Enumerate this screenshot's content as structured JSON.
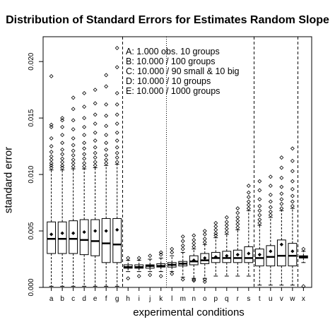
{
  "chart_data": {
    "type": "box",
    "title": "Distribution of Standard Errors for Estimates Random Slope",
    "xlabel": "experimental conditions",
    "ylabel": "standard error",
    "ylim": [
      0,
      0.0222
    ],
    "yticks": [
      "0.000",
      "0.005",
      "0.010",
      "0.015",
      "0.020"
    ],
    "ytick_values": [
      0,
      0.005,
      0.01,
      0.015,
      0.02
    ],
    "categories": [
      "a",
      "b",
      "c",
      "d",
      "e",
      "f",
      "g",
      "h",
      "i",
      "j",
      "k",
      "l",
      "m",
      "n",
      "o",
      "p",
      "q",
      "r",
      "s",
      "t",
      "u",
      "v",
      "w",
      "x"
    ],
    "legend": [
      "A: 1.000 obs. 10 groups",
      "B: 10.000 / 100 groups",
      "C: 10.000 / 90 small & 10 big",
      "D: 10.000 / 10 groups",
      "E: 10.000 / 1000 groups"
    ],
    "group_separators": [
      {
        "after": "g",
        "style": "dashed"
      },
      {
        "after": "k",
        "style": "dotted"
      },
      {
        "after": "s",
        "style": "dashed"
      },
      {
        "after": "w",
        "style": "dashed"
      }
    ],
    "boxes": [
      {
        "label": "a",
        "whisker_low": 0.0001,
        "q1": 0.003,
        "median": 0.0043,
        "q3": 0.0058,
        "whisker_high": 0.0104,
        "mean": 0.0047,
        "outliers": [
          0.0106,
          0.0108,
          0.011,
          0.0113,
          0.0116,
          0.012,
          0.0125,
          0.0132,
          0.0142,
          0.0144,
          0.0187
        ]
      },
      {
        "label": "b",
        "whisker_low": 0.0001,
        "q1": 0.003,
        "median": 0.0043,
        "q3": 0.0058,
        "whisker_high": 0.0104,
        "mean": 0.0048,
        "outliers": [
          0.0106,
          0.0108,
          0.0111,
          0.0114,
          0.0118,
          0.0122,
          0.0128,
          0.0135,
          0.0142,
          0.0148,
          0.015
        ]
      },
      {
        "label": "c",
        "whisker_low": 0.0001,
        "q1": 0.003,
        "median": 0.0043,
        "q3": 0.0059,
        "whisker_high": 0.0105,
        "mean": 0.0048,
        "outliers": [
          0.0107,
          0.011,
          0.0113,
          0.0117,
          0.0121,
          0.0126,
          0.0132,
          0.014,
          0.0148,
          0.0158,
          0.0168
        ]
      },
      {
        "label": "d",
        "whisker_low": 0.0001,
        "q1": 0.0029,
        "median": 0.0042,
        "q3": 0.006,
        "whisker_high": 0.0105,
        "mean": 0.0049,
        "outliers": [
          0.0107,
          0.011,
          0.0114,
          0.0118,
          0.0123,
          0.0128,
          0.0135,
          0.0142,
          0.015,
          0.016,
          0.0172
        ]
      },
      {
        "label": "e",
        "whisker_low": 0.0001,
        "q1": 0.0028,
        "median": 0.0041,
        "q3": 0.006,
        "whisker_high": 0.0106,
        "mean": 0.005,
        "outliers": [
          0.0108,
          0.0111,
          0.0115,
          0.0119,
          0.0124,
          0.013,
          0.0137,
          0.0145,
          0.0153,
          0.0163,
          0.0175
        ]
      },
      {
        "label": "f",
        "whisker_low": 0.0001,
        "q1": 0.0022,
        "median": 0.0039,
        "q3": 0.0061,
        "whisker_high": 0.0108,
        "mean": 0.005,
        "outliers": [
          0.011,
          0.0113,
          0.0117,
          0.0122,
          0.0128,
          0.0135,
          0.0143,
          0.0152,
          0.0162,
          0.0178,
          0.0188
        ]
      },
      {
        "label": "g",
        "whisker_low": 0.0001,
        "q1": 0.0022,
        "median": 0.0038,
        "q3": 0.0061,
        "whisker_high": 0.0109,
        "mean": 0.0051,
        "outliers": [
          0.0111,
          0.0115,
          0.0119,
          0.0124,
          0.013,
          0.0137,
          0.0145,
          0.0153,
          0.0162,
          0.0172,
          0.0195,
          0.0212
        ]
      },
      {
        "label": "h",
        "whisker_low": 0.0014,
        "q1": 0.0017,
        "median": 0.0018,
        "q3": 0.002,
        "whisker_high": 0.0024,
        "mean": 0.0018,
        "outliers": [
          0.0026,
          0.0008
        ]
      },
      {
        "label": "i",
        "whisker_low": 0.0014,
        "q1": 0.0017,
        "median": 0.0018,
        "q3": 0.002,
        "whisker_high": 0.0024,
        "mean": 0.0018,
        "outliers": [
          0.0026,
          0.001
        ]
      },
      {
        "label": "j",
        "whisker_low": 0.0014,
        "q1": 0.0017,
        "median": 0.0019,
        "q3": 0.002,
        "whisker_high": 0.0025,
        "mean": 0.0019,
        "outliers": [
          0.0028,
          0.0011
        ]
      },
      {
        "label": "k",
        "whisker_low": 0.0014,
        "q1": 0.0018,
        "median": 0.0019,
        "q3": 0.0021,
        "whisker_high": 0.0026,
        "mean": 0.0019,
        "outliers": [
          0.0029,
          0.0031,
          0.001
        ]
      },
      {
        "label": "l",
        "whisker_low": 0.0014,
        "q1": 0.0018,
        "median": 0.002,
        "q3": 0.0022,
        "whisker_high": 0.0028,
        "mean": 0.002,
        "outliers": [
          0.0031,
          0.0034,
          0.0012
        ]
      },
      {
        "label": "m",
        "whisker_low": 0.0009,
        "q1": 0.0019,
        "median": 0.0021,
        "q3": 0.0023,
        "whisker_high": 0.0031,
        "mean": 0.0021,
        "outliers": [
          0.0034,
          0.0037,
          0.0041,
          0.0045,
          0.0007
        ]
      },
      {
        "label": "n",
        "whisker_low": 0.0008,
        "q1": 0.002,
        "median": 0.0023,
        "q3": 0.0028,
        "whisker_high": 0.0034,
        "mean": 0.0024,
        "outliers": [
          0.0036,
          0.0039,
          0.0042,
          0.0046,
          0.0007,
          0.0006
        ]
      },
      {
        "label": "o",
        "whisker_low": 0.0008,
        "q1": 0.0021,
        "median": 0.0024,
        "q3": 0.003,
        "whisker_high": 0.0038,
        "mean": 0.0026,
        "outliers": [
          0.004,
          0.0043,
          0.0047,
          0.005,
          0.0007,
          0.0005
        ]
      },
      {
        "label": "p",
        "whisker_low": 0.001,
        "q1": 0.0022,
        "median": 0.0026,
        "q3": 0.0031,
        "whisker_high": 0.0044,
        "mean": 0.0027,
        "outliers": [
          0.0046,
          0.0048,
          0.0051,
          0.0054,
          0.0057
        ]
      },
      {
        "label": "q",
        "whisker_low": 0.001,
        "q1": 0.0022,
        "median": 0.0026,
        "q3": 0.0032,
        "whisker_high": 0.0047,
        "mean": 0.0028,
        "outliers": [
          0.0049,
          0.0052,
          0.0055,
          0.0058,
          0.0062
        ]
      },
      {
        "label": "r",
        "whisker_low": 0.001,
        "q1": 0.0022,
        "median": 0.0026,
        "q3": 0.0033,
        "whisker_high": 0.0051,
        "mean": 0.0029,
        "outliers": [
          0.0053,
          0.0056,
          0.0059,
          0.0062,
          0.0066,
          0.007
        ]
      },
      {
        "label": "s",
        "whisker_low": 0.001,
        "q1": 0.0022,
        "median": 0.0026,
        "q3": 0.0036,
        "whisker_high": 0.0068,
        "mean": 0.003,
        "outliers": [
          0.007,
          0.0073,
          0.0076,
          0.008,
          0.0084,
          0.009
        ]
      },
      {
        "label": "t",
        "whisker_low": 0.0002,
        "q1": 0.0019,
        "median": 0.0026,
        "q3": 0.0034,
        "whisker_high": 0.0055,
        "mean": 0.0029,
        "outliers": [
          0.0057,
          0.006,
          0.0064,
          0.0068,
          0.0072,
          0.0078,
          0.0086,
          0.0094
        ]
      },
      {
        "label": "u",
        "whisker_low": 0.0002,
        "q1": 0.0019,
        "median": 0.0027,
        "q3": 0.0037,
        "whisker_high": 0.0062,
        "mean": 0.0032,
        "outliers": [
          0.0064,
          0.0067,
          0.0071,
          0.0076,
          0.0082,
          0.009,
          0.0098
        ]
      },
      {
        "label": "v",
        "whisker_low": 0.0002,
        "q1": 0.0019,
        "median": 0.0028,
        "q3": 0.0042,
        "whisker_high": 0.0068,
        "mean": 0.0038,
        "outliers": [
          0.007,
          0.0074,
          0.0078,
          0.0083,
          0.0089,
          0.0097,
          0.0106,
          0.0115
        ]
      },
      {
        "label": "w",
        "whisker_low": 0.0002,
        "q1": 0.0019,
        "median": 0.0028,
        "q3": 0.0039,
        "whisker_high": 0.007,
        "mean": 0.0032,
        "outliers": [
          0.0072,
          0.0076,
          0.0081,
          0.0087,
          0.0094,
          0.0103,
          0.0112,
          0.0123
        ]
      },
      {
        "label": "x",
        "whisker_low": 0.0022,
        "q1": 0.0026,
        "median": 0.0027,
        "q3": 0.0028,
        "whisker_high": 0.0032,
        "mean": 0.0027,
        "outliers": [
          0.0034,
          0.0001
        ]
      }
    ]
  }
}
